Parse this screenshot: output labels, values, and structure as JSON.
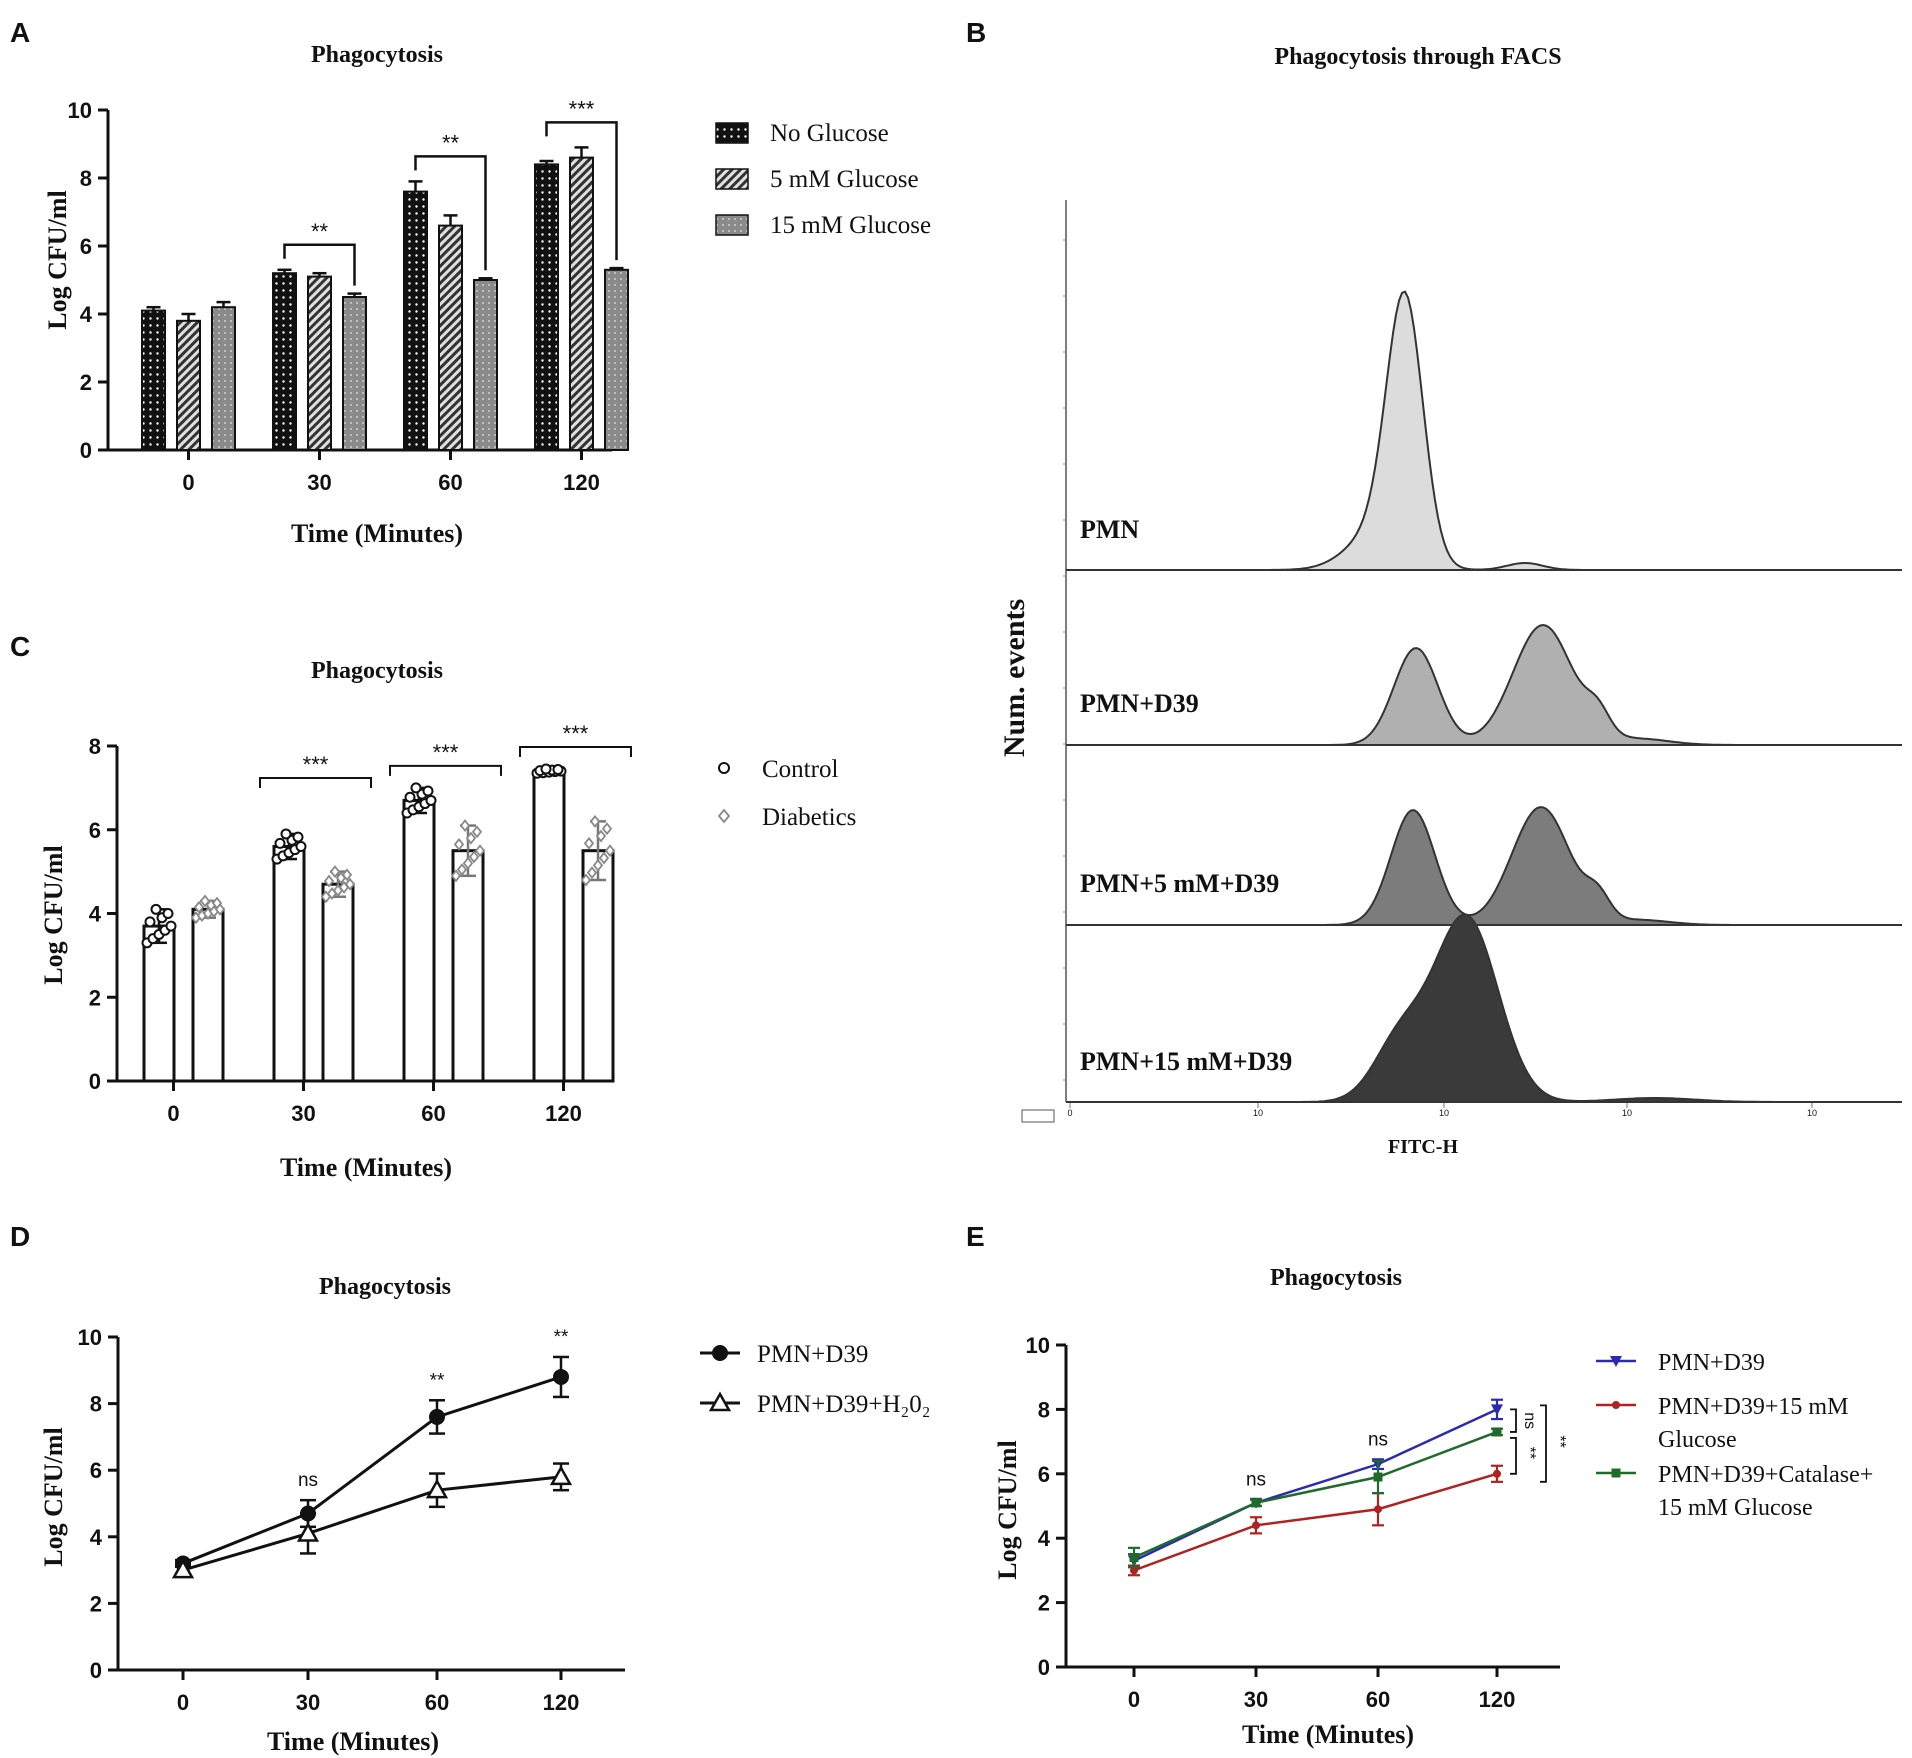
{
  "panels": {
    "A": {
      "letter": "A",
      "chart_data": {
        "type": "bar",
        "title": "Phagocytosis",
        "xlabel": "Time (Minutes)",
        "ylabel": "Log CFU/ml",
        "ylim": [
          0,
          10
        ],
        "yticks": [
          "0",
          "2",
          "4",
          "6",
          "8",
          "10"
        ],
        "categories": [
          "0",
          "30",
          "60",
          "120"
        ],
        "series": [
          {
            "name": "No Glucose",
            "values": [
              4.1,
              5.2,
              7.6,
              8.4
            ],
            "errors": [
              0.1,
              0.1,
              0.3,
              0.1
            ]
          },
          {
            "name": "5 mM Glucose",
            "values": [
              3.8,
              5.1,
              6.6,
              8.6
            ],
            "errors": [
              0.2,
              0.1,
              0.3,
              0.3
            ]
          },
          {
            "name": "15 mM Glucose",
            "values": [
              4.2,
              4.5,
              5.0,
              5.3
            ],
            "errors": [
              0.15,
              0.1,
              0.05,
              0.05
            ]
          }
        ],
        "annotations": [
          {
            "group": "30",
            "text": "**"
          },
          {
            "group": "60",
            "text": "**"
          },
          {
            "group": "120",
            "text": "***"
          }
        ]
      }
    },
    "B": {
      "letter": "B",
      "title": "Phagocytosis through FACS",
      "ylabel": "Num. events",
      "xlabel": "FITC-H",
      "histograms": [
        "PMN",
        "PMN+D39",
        "PMN+5 mM+D39",
        "PMN+15 mM+D39"
      ],
      "colors": [
        "#dcdcdc",
        "#b0b0b0",
        "#7c7c7c",
        "#3a3a3a"
      ]
    },
    "C": {
      "letter": "C",
      "chart_data": {
        "type": "bar",
        "title": "Phagocytosis",
        "xlabel": "Time (Minutes)",
        "ylabel": "Log CFU/ml",
        "ylim": [
          0,
          8
        ],
        "yticks": [
          "0",
          "2",
          "4",
          "6",
          "8"
        ],
        "categories": [
          "0",
          "30",
          "60",
          "120"
        ],
        "series": [
          {
            "name": "Control",
            "values": [
              3.7,
              5.6,
              6.7,
              7.4
            ],
            "errors": [
              0.4,
              0.3,
              0.3,
              0.05
            ]
          },
          {
            "name": "Diabetics",
            "values": [
              4.1,
              4.7,
              5.5,
              5.5
            ],
            "errors": [
              0.2,
              0.3,
              0.6,
              0.7
            ]
          }
        ],
        "annotations": [
          {
            "group": "30",
            "text": "***"
          },
          {
            "group": "60",
            "text": "***"
          },
          {
            "group": "120",
            "text": "***"
          }
        ]
      }
    },
    "D": {
      "letter": "D",
      "chart_data": {
        "type": "line",
        "title": "Phagocytosis",
        "xlabel": "Time (Minutes)",
        "ylabel": "Log CFU/ml",
        "ylim": [
          0,
          10
        ],
        "yticks": [
          "0",
          "2",
          "4",
          "6",
          "8",
          "10"
        ],
        "categories": [
          "0",
          "30",
          "60",
          "120"
        ],
        "series": [
          {
            "name": "PMN+D39",
            "values": [
              3.2,
              4.7,
              7.6,
              8.8
            ],
            "errors": [
              0.1,
              0.4,
              0.5,
              0.6
            ]
          },
          {
            "name": "PMN+D39+H₂0₂",
            "values": [
              3.0,
              4.1,
              5.4,
              5.8
            ],
            "errors": [
              0.15,
              0.6,
              0.5,
              0.4
            ]
          }
        ],
        "annotations": [
          {
            "x": "30",
            "text": "ns"
          },
          {
            "x": "60",
            "text": "**"
          },
          {
            "x": "120",
            "text": "**"
          }
        ]
      }
    },
    "E": {
      "letter": "E",
      "chart_data": {
        "type": "line",
        "title": "Phagocytosis",
        "xlabel": "Time (Minutes)",
        "ylabel": "Log CFU/ml",
        "ylim": [
          0,
          10
        ],
        "yticks": [
          "0",
          "2",
          "4",
          "6",
          "8",
          "10"
        ],
        "categories": [
          "0",
          "30",
          "60",
          "120"
        ],
        "series": [
          {
            "name": "PMN+D39",
            "legend_lines": [
              "PMN+D39"
            ],
            "color": "#2b2bb0",
            "values": [
              3.3,
              5.1,
              6.3,
              8.0
            ],
            "errors": [
              0.2,
              0.1,
              0.15,
              0.3
            ]
          },
          {
            "name": "PMN+D39+15 mM Glucose",
            "legend_lines": [
              "PMN+D39+15 mM",
              "Glucose"
            ],
            "color": "#b02222",
            "values": [
              3.0,
              4.4,
              4.9,
              6.0
            ],
            "errors": [
              0.15,
              0.25,
              0.5,
              0.25
            ]
          },
          {
            "name": "PMN+D39+Catalase+15 mM Glucose",
            "legend_lines": [
              "PMN+D39+Catalase+",
              "15 mM Glucose"
            ],
            "color": "#1e6b2a",
            "values": [
              3.4,
              5.1,
              5.9,
              7.3
            ],
            "errors": [
              0.3,
              0.1,
              0.5,
              0.1
            ]
          }
        ],
        "annotations": [
          {
            "x": "30",
            "text": "ns"
          },
          {
            "x": "60",
            "text": "ns"
          },
          {
            "bracket": "top",
            "text": "ns"
          },
          {
            "bracket": "bottom",
            "text": "**"
          },
          {
            "bracket": "outer",
            "text": "**"
          }
        ]
      }
    }
  }
}
